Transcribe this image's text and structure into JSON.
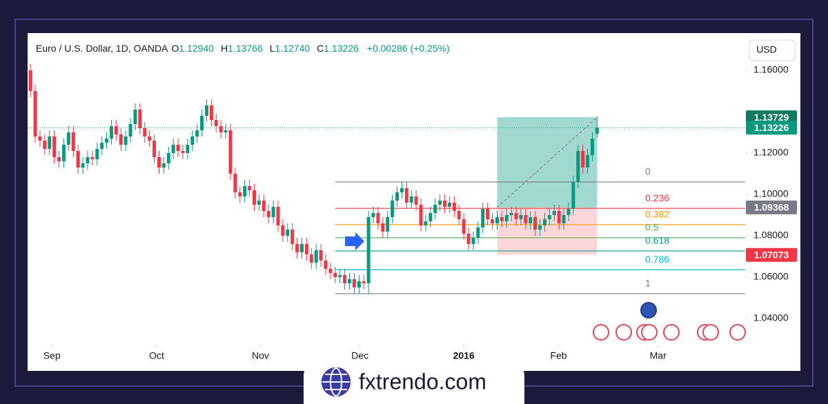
{
  "chart_data": {
    "type": "candlestick",
    "header": {
      "symbol": "Euro / U.S. Dollar, 1D, OANDA",
      "ohlc": [
        [
          "O",
          "1.12940"
        ],
        [
          "H",
          "1.13766"
        ],
        [
          "L",
          "1.12740"
        ],
        [
          "C",
          "1.13226"
        ]
      ],
      "change": "+0.00286 (+0.25%)"
    },
    "currency": "USD",
    "up_color": "#089981",
    "down_color": "#f23645",
    "open": [
      1.16,
      1.15,
      1.128,
      1.126,
      1.122,
      1.128,
      1.118,
      1.116,
      1.124,
      1.13,
      1.121,
      1.113,
      1.115,
      1.118,
      1.117,
      1.122,
      1.125,
      1.127,
      1.133,
      1.129,
      1.124,
      1.128,
      1.134,
      1.141,
      1.132,
      1.128,
      1.126,
      1.118,
      1.113,
      1.115,
      1.12,
      1.124,
      1.121,
      1.12,
      1.124,
      1.128,
      1.131,
      1.138,
      1.143,
      1.136,
      1.133,
      1.13,
      1.131,
      1.11,
      1.101,
      1.099,
      1.104,
      1.102,
      1.095,
      1.097,
      1.092,
      1.089,
      1.094,
      1.085,
      1.08,
      1.083,
      1.076,
      1.072,
      1.076,
      1.071,
      1.067,
      1.073,
      1.068,
      1.064,
      1.062,
      1.06,
      1.061,
      1.057,
      1.059,
      1.055,
      1.058,
      1.057,
      1.089,
      1.091,
      1.086,
      1.082,
      1.089,
      1.097,
      1.101,
      1.103,
      1.096,
      1.099,
      1.095,
      1.085,
      1.087,
      1.091,
      1.095,
      1.097,
      1.094,
      1.096,
      1.092,
      1.088,
      1.081,
      1.076,
      1.079,
      1.084,
      1.093,
      1.088,
      1.086,
      1.089,
      1.087,
      1.09,
      1.091,
      1.088,
      1.09,
      1.086,
      1.089,
      1.083,
      1.085,
      1.088,
      1.09,
      1.092,
      1.086,
      1.09,
      1.093,
      1.106,
      1.121,
      1.113,
      1.119,
      1.1294
    ],
    "high": [
      1.163,
      1.153,
      1.131,
      1.129,
      1.131,
      1.131,
      1.121,
      1.127,
      1.133,
      1.133,
      1.124,
      1.118,
      1.121,
      1.121,
      1.125,
      1.128,
      1.13,
      1.136,
      1.136,
      1.132,
      1.131,
      1.137,
      1.144,
      1.144,
      1.135,
      1.131,
      1.129,
      1.121,
      1.118,
      1.123,
      1.127,
      1.127,
      1.124,
      1.127,
      1.131,
      1.134,
      1.141,
      1.146,
      1.146,
      1.139,
      1.136,
      1.134,
      1.134,
      1.113,
      1.104,
      1.107,
      1.107,
      1.105,
      1.1,
      1.1,
      1.095,
      1.097,
      1.097,
      1.088,
      1.086,
      1.086,
      1.079,
      1.079,
      1.079,
      1.074,
      1.076,
      1.076,
      1.071,
      1.067,
      1.065,
      1.064,
      1.064,
      1.062,
      1.062,
      1.061,
      1.061,
      1.092,
      1.094,
      1.094,
      1.089,
      1.092,
      1.1,
      1.104,
      1.106,
      1.106,
      1.102,
      1.102,
      1.098,
      1.09,
      1.094,
      1.098,
      1.1,
      1.1,
      1.099,
      1.099,
      1.095,
      1.091,
      1.084,
      1.082,
      1.087,
      1.096,
      1.096,
      1.091,
      1.092,
      1.092,
      1.093,
      1.094,
      1.094,
      1.093,
      1.093,
      1.092,
      1.092,
      1.088,
      1.091,
      1.093,
      1.095,
      1.095,
      1.093,
      1.096,
      1.109,
      1.124,
      1.124,
      1.122,
      1.13,
      1.13766
    ],
    "low": [
      1.147,
      1.125,
      1.123,
      1.119,
      1.119,
      1.115,
      1.113,
      1.113,
      1.121,
      1.118,
      1.11,
      1.11,
      1.112,
      1.114,
      1.114,
      1.119,
      1.122,
      1.124,
      1.126,
      1.121,
      1.121,
      1.125,
      1.131,
      1.129,
      1.125,
      1.123,
      1.115,
      1.11,
      1.11,
      1.112,
      1.117,
      1.118,
      1.117,
      1.117,
      1.121,
      1.125,
      1.128,
      1.135,
      1.133,
      1.13,
      1.127,
      1.127,
      1.107,
      1.098,
      1.096,
      1.096,
      1.099,
      1.092,
      1.092,
      1.089,
      1.086,
      1.086,
      1.082,
      1.077,
      1.077,
      1.073,
      1.069,
      1.069,
      1.068,
      1.064,
      1.064,
      1.065,
      1.061,
      1.059,
      1.057,
      1.057,
      1.054,
      1.054,
      1.052,
      1.052,
      1.054,
      1.052,
      1.086,
      1.083,
      1.079,
      1.079,
      1.086,
      1.094,
      1.098,
      1.093,
      1.093,
      1.092,
      1.082,
      1.082,
      1.084,
      1.088,
      1.092,
      1.091,
      1.091,
      1.089,
      1.085,
      1.078,
      1.073,
      1.073,
      1.076,
      1.081,
      1.085,
      1.083,
      1.083,
      1.084,
      1.084,
      1.087,
      1.085,
      1.085,
      1.083,
      1.083,
      1.08,
      1.08,
      1.082,
      1.085,
      1.087,
      1.083,
      1.083,
      1.087,
      1.09,
      1.103,
      1.11,
      1.11,
      1.116,
      1.1274
    ],
    "close": [
      1.15,
      1.128,
      1.126,
      1.122,
      1.128,
      1.118,
      1.116,
      1.124,
      1.13,
      1.121,
      1.113,
      1.115,
      1.118,
      1.117,
      1.122,
      1.125,
      1.127,
      1.133,
      1.129,
      1.124,
      1.128,
      1.134,
      1.141,
      1.132,
      1.128,
      1.126,
      1.118,
      1.113,
      1.115,
      1.12,
      1.124,
      1.121,
      1.12,
      1.124,
      1.128,
      1.131,
      1.138,
      1.143,
      1.136,
      1.133,
      1.13,
      1.131,
      1.11,
      1.101,
      1.099,
      1.104,
      1.102,
      1.095,
      1.097,
      1.092,
      1.089,
      1.094,
      1.085,
      1.08,
      1.083,
      1.076,
      1.072,
      1.076,
      1.071,
      1.067,
      1.073,
      1.068,
      1.064,
      1.062,
      1.06,
      1.061,
      1.057,
      1.059,
      1.055,
      1.058,
      1.057,
      1.089,
      1.091,
      1.086,
      1.082,
      1.089,
      1.097,
      1.101,
      1.103,
      1.096,
      1.099,
      1.095,
      1.085,
      1.087,
      1.091,
      1.095,
      1.097,
      1.094,
      1.096,
      1.092,
      1.088,
      1.081,
      1.076,
      1.079,
      1.084,
      1.093,
      1.088,
      1.086,
      1.089,
      1.087,
      1.09,
      1.091,
      1.088,
      1.09,
      1.086,
      1.089,
      1.083,
      1.085,
      1.088,
      1.09,
      1.092,
      1.086,
      1.09,
      1.093,
      1.106,
      1.121,
      1.113,
      1.119,
      1.127,
      1.13226
    ],
    "xlim": [
      -0.6,
      150.1
    ],
    "xticks": [
      {
        "value": 4.5,
        "label": "Sep"
      },
      {
        "value": 26.5,
        "label": "Oct"
      },
      {
        "value": 48.3,
        "label": "Nov"
      },
      {
        "value": 69.2,
        "label": "Dec"
      },
      {
        "value": 91,
        "label": "2016"
      },
      {
        "value": 110.9,
        "label": "Feb"
      },
      {
        "value": 131.8,
        "label": "Mar"
      }
    ],
    "ylim": [
      1.0273,
      1.178
    ],
    "yticks": [
      {
        "value": 1.04,
        "label": "1.04000"
      },
      {
        "value": 1.06,
        "label": "1.06000"
      },
      {
        "value": 1.08,
        "label": "1.08000"
      },
      {
        "value": 1.1,
        "label": "1.10000"
      },
      {
        "value": 1.12,
        "label": "1.12000"
      },
      {
        "value": 1.16,
        "label": "1.16000"
      }
    ],
    "fibonacci": {
      "high": 1.106,
      "low": 1.052,
      "start": 64,
      "levels": [
        0,
        0.236,
        0.382,
        0.5,
        0.618,
        0.786,
        1
      ],
      "colors": [
        "#787b86",
        "#f23645",
        "#ff9800",
        "#4caf50",
        "#089981",
        "#00bcd4",
        "#787b86"
      ]
    },
    "position": {
      "start": 98,
      "end": 119,
      "entry": 1.09368,
      "target": 1.13729,
      "stop": 1.07073
    },
    "last_price": 1.13226
  },
  "watermark": "fxtrendo.com"
}
